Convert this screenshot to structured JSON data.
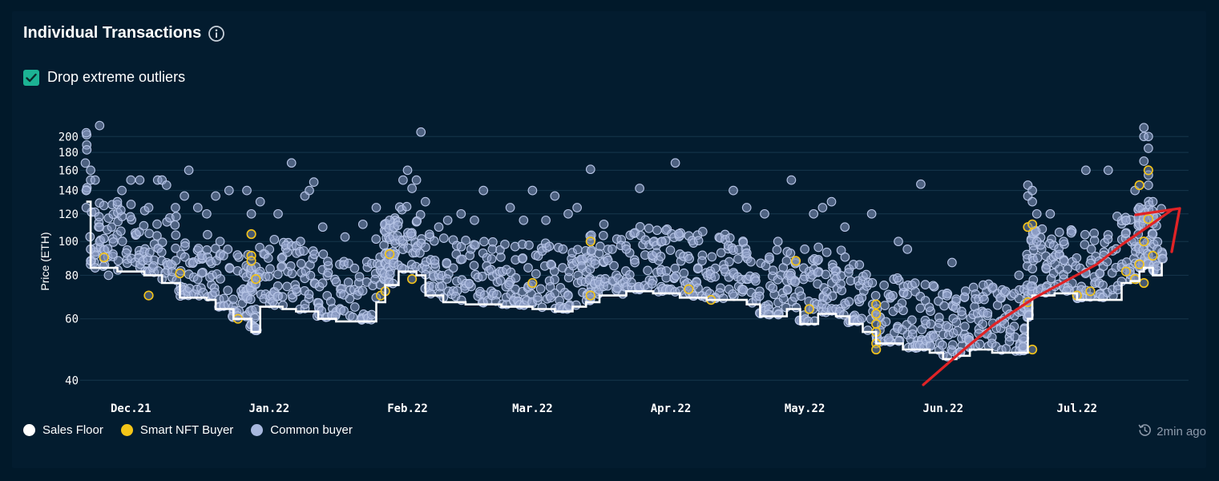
{
  "widget": {
    "title": "Individual Transactions",
    "info_icon": "info-circle-icon",
    "toggle_label": "Drop extreme outliers",
    "toggle_checked": true,
    "updated": "2min ago",
    "updated_icon": "clock-history-icon"
  },
  "legend": {
    "items": [
      {
        "label": "Sales Floor",
        "color": "#ffffff"
      },
      {
        "label": "Smart NFT Buyer",
        "color": "#f5c518"
      },
      {
        "label": "Common buyer",
        "color": "#a8b8de"
      }
    ]
  },
  "colors": {
    "background": "#01192a",
    "panel": "#031c2f",
    "grid": "#16364c",
    "floor": "#ffffff",
    "smart": "#f5c518",
    "common": "#a8b8de",
    "annotation": "#e02326",
    "toggle": "#1cb394"
  },
  "chart_data": {
    "type": "scatter",
    "ylabel": "Price (ETH)",
    "xlabel": "",
    "y_scale": "log",
    "ylim": [
      38,
      225
    ],
    "xlim": [
      "2021-11-20",
      "2022-07-26"
    ],
    "yticks": [
      40,
      60,
      80,
      100,
      120,
      140,
      160,
      180,
      200
    ],
    "xticks": [
      {
        "date": "2021-12-01",
        "label": "Dec.21"
      },
      {
        "date": "2022-01-01",
        "label": "Jan.22"
      },
      {
        "date": "2022-02-01",
        "label": "Feb.22"
      },
      {
        "date": "2022-03-01",
        "label": "Mar.22"
      },
      {
        "date": "2022-04-01",
        "label": "Apr.22"
      },
      {
        "date": "2022-05-01",
        "label": "May.22"
      },
      {
        "date": "2022-06-01",
        "label": "Jun.22"
      },
      {
        "date": "2022-07-01",
        "label": "Jul.22"
      }
    ],
    "grid": true,
    "legend_position": "bottom-left",
    "series": [
      {
        "name": "Sales Floor",
        "kind": "step-line",
        "points": [
          [
            "2021-11-21",
            130
          ],
          [
            "2021-11-22",
            84
          ],
          [
            "2021-11-28",
            82
          ],
          [
            "2021-12-04",
            80
          ],
          [
            "2021-12-08",
            76
          ],
          [
            "2021-12-12",
            69
          ],
          [
            "2021-12-18",
            68
          ],
          [
            "2021-12-20",
            64
          ],
          [
            "2021-12-24",
            60
          ],
          [
            "2021-12-28",
            55
          ],
          [
            "2021-12-30",
            65
          ],
          [
            "2022-01-04",
            64
          ],
          [
            "2022-01-07",
            63
          ],
          [
            "2022-01-12",
            60
          ],
          [
            "2022-01-16",
            59
          ],
          [
            "2022-01-22",
            59
          ],
          [
            "2022-01-25",
            67
          ],
          [
            "2022-01-27",
            75
          ],
          [
            "2022-01-30",
            82
          ],
          [
            "2022-02-03",
            80
          ],
          [
            "2022-02-05",
            70
          ],
          [
            "2022-02-09",
            67
          ],
          [
            "2022-02-14",
            66
          ],
          [
            "2022-02-22",
            65
          ],
          [
            "2022-03-01",
            64
          ],
          [
            "2022-03-06",
            63
          ],
          [
            "2022-03-10",
            65
          ],
          [
            "2022-03-13",
            67
          ],
          [
            "2022-03-16",
            70
          ],
          [
            "2022-03-22",
            72
          ],
          [
            "2022-03-28",
            71
          ],
          [
            "2022-04-03",
            69
          ],
          [
            "2022-04-09",
            68
          ],
          [
            "2022-04-14",
            68
          ],
          [
            "2022-04-18",
            66
          ],
          [
            "2022-04-21",
            61
          ],
          [
            "2022-04-27",
            64
          ],
          [
            "2022-04-30",
            58
          ],
          [
            "2022-05-04",
            62
          ],
          [
            "2022-05-08",
            61
          ],
          [
            "2022-05-11",
            58
          ],
          [
            "2022-05-14",
            55
          ],
          [
            "2022-05-17",
            51
          ],
          [
            "2022-05-23",
            49
          ],
          [
            "2022-05-29",
            48
          ],
          [
            "2022-06-01",
            46
          ],
          [
            "2022-06-04",
            47
          ],
          [
            "2022-06-07",
            49
          ],
          [
            "2022-06-12",
            48
          ],
          [
            "2022-06-17",
            48
          ],
          [
            "2022-06-20",
            60
          ],
          [
            "2022-06-21",
            70
          ],
          [
            "2022-06-26",
            71
          ],
          [
            "2022-07-01",
            68
          ],
          [
            "2022-07-08",
            68
          ],
          [
            "2022-07-11",
            76
          ],
          [
            "2022-07-13",
            77
          ],
          [
            "2022-07-15",
            82
          ],
          [
            "2022-07-16",
            84
          ],
          [
            "2022-07-18",
            80
          ],
          [
            "2022-07-20",
            87
          ]
        ]
      },
      {
        "name": "Smart NFT Buyer",
        "kind": "scatter",
        "points": [
          [
            "2021-11-25",
            90
          ],
          [
            "2021-12-05",
            70
          ],
          [
            "2021-12-12",
            81
          ],
          [
            "2021-12-25",
            60
          ],
          [
            "2021-12-28",
            105
          ],
          [
            "2021-12-28",
            91
          ],
          [
            "2021-12-28",
            88
          ],
          [
            "2021-12-29",
            78
          ],
          [
            "2022-01-26",
            70
          ],
          [
            "2022-01-27",
            72
          ],
          [
            "2022-01-28",
            92
          ],
          [
            "2022-02-02",
            78
          ],
          [
            "2022-03-01",
            76
          ],
          [
            "2022-03-14",
            100
          ],
          [
            "2022-03-14",
            70
          ],
          [
            "2022-04-05",
            73
          ],
          [
            "2022-04-10",
            68
          ],
          [
            "2022-04-29",
            88
          ],
          [
            "2022-05-02",
            64
          ],
          [
            "2022-05-17",
            66
          ],
          [
            "2022-05-17",
            62
          ],
          [
            "2022-05-17",
            58
          ],
          [
            "2022-05-17",
            55
          ],
          [
            "2022-05-17",
            51
          ],
          [
            "2022-05-17",
            49
          ],
          [
            "2022-06-20",
            110
          ],
          [
            "2022-06-20",
            67
          ],
          [
            "2022-06-21",
            112
          ],
          [
            "2022-06-21",
            49
          ],
          [
            "2022-07-01",
            70
          ],
          [
            "2022-07-04",
            72
          ],
          [
            "2022-07-12",
            82
          ],
          [
            "2022-07-14",
            78
          ],
          [
            "2022-07-15",
            145
          ],
          [
            "2022-07-15",
            86
          ],
          [
            "2022-07-16",
            100
          ],
          [
            "2022-07-16",
            76
          ],
          [
            "2022-07-17",
            160
          ],
          [
            "2022-07-17",
            116
          ],
          [
            "2022-07-18",
            91
          ]
        ]
      },
      {
        "name": "Common buyer",
        "kind": "scatter",
        "points": [
          [
            "2021-11-21",
            205
          ],
          [
            "2021-11-21",
            140
          ],
          [
            "2021-11-21",
            125
          ],
          [
            "2021-11-22",
            160
          ],
          [
            "2021-11-22",
            150
          ],
          [
            "2021-11-23",
            150
          ],
          [
            "2021-11-24",
            215
          ],
          [
            "2021-11-24",
            110
          ],
          [
            "2021-11-22",
            95
          ],
          [
            "2021-11-22",
            88
          ],
          [
            "2021-11-23",
            84
          ],
          [
            "2021-11-24",
            100
          ],
          [
            "2021-11-25",
            102
          ],
          [
            "2021-11-26",
            80
          ],
          [
            "2021-11-27",
            92
          ],
          [
            "2021-11-28",
            130
          ],
          [
            "2021-11-29",
            140
          ],
          [
            "2021-12-01",
            150
          ],
          [
            "2021-12-03",
            150
          ],
          [
            "2021-12-05",
            125
          ],
          [
            "2021-12-07",
            150
          ],
          [
            "2021-12-08",
            150
          ],
          [
            "2021-12-09",
            145
          ],
          [
            "2021-12-11",
            125
          ],
          [
            "2021-12-13",
            135
          ],
          [
            "2021-12-14",
            160
          ],
          [
            "2021-12-16",
            125
          ],
          [
            "2021-12-18",
            120
          ],
          [
            "2021-12-20",
            135
          ],
          [
            "2021-12-21",
            100
          ],
          [
            "2021-12-23",
            140
          ],
          [
            "2021-12-27",
            140
          ],
          [
            "2021-12-28",
            120
          ],
          [
            "2021-12-30",
            130
          ],
          [
            "2022-01-03",
            120
          ],
          [
            "2022-01-06",
            168
          ],
          [
            "2022-01-08",
            100
          ],
          [
            "2022-01-09",
            135
          ],
          [
            "2022-01-11",
            148
          ],
          [
            "2022-01-13",
            110
          ],
          [
            "2022-01-10",
            140
          ],
          [
            "2022-01-18",
            103
          ],
          [
            "2022-01-22",
            112
          ],
          [
            "2022-01-25",
            125
          ],
          [
            "2022-01-28",
            115
          ],
          [
            "2022-01-31",
            150
          ],
          [
            "2022-02-01",
            160
          ],
          [
            "2022-02-02",
            142
          ],
          [
            "2022-02-03",
            150
          ],
          [
            "2022-02-04",
            206
          ],
          [
            "2022-02-05",
            130
          ],
          [
            "2022-02-08",
            110
          ],
          [
            "2022-02-10",
            115
          ],
          [
            "2022-02-13",
            120
          ],
          [
            "2022-02-16",
            115
          ],
          [
            "2022-02-18",
            140
          ],
          [
            "2022-02-20",
            95
          ],
          [
            "2022-02-24",
            125
          ],
          [
            "2022-02-27",
            115
          ],
          [
            "2022-03-01",
            140
          ],
          [
            "2022-03-04",
            115
          ],
          [
            "2022-03-06",
            135
          ],
          [
            "2022-03-09",
            120
          ],
          [
            "2022-03-11",
            125
          ],
          [
            "2022-03-12",
            85
          ],
          [
            "2022-03-14",
            161
          ],
          [
            "2022-03-17",
            112
          ],
          [
            "2022-03-22",
            95
          ],
          [
            "2022-03-25",
            142
          ],
          [
            "2022-03-30",
            100
          ],
          [
            "2022-04-02",
            168
          ],
          [
            "2022-04-08",
            88
          ],
          [
            "2022-04-15",
            140
          ],
          [
            "2022-04-18",
            125
          ],
          [
            "2022-04-22",
            120
          ],
          [
            "2022-04-25",
            100
          ],
          [
            "2022-04-28",
            150
          ],
          [
            "2022-05-01",
            95
          ],
          [
            "2022-05-03",
            120
          ],
          [
            "2022-05-05",
            125
          ],
          [
            "2022-05-07",
            130
          ],
          [
            "2022-05-10",
            110
          ],
          [
            "2022-05-16",
            120
          ],
          [
            "2022-05-22",
            100
          ],
          [
            "2022-05-24",
            95
          ],
          [
            "2022-05-27",
            146
          ],
          [
            "2022-06-03",
            87
          ],
          [
            "2022-06-10",
            75
          ],
          [
            "2022-06-15",
            72
          ],
          [
            "2022-06-18",
            80
          ],
          [
            "2022-06-20",
            145
          ],
          [
            "2022-06-20",
            135
          ],
          [
            "2022-06-21",
            140
          ],
          [
            "2022-06-21",
            130
          ],
          [
            "2022-06-22",
            120
          ],
          [
            "2022-06-22",
            100
          ],
          [
            "2022-06-25",
            120
          ],
          [
            "2022-06-28",
            100
          ],
          [
            "2022-07-03",
            160
          ],
          [
            "2022-07-08",
            160
          ],
          [
            "2022-07-10",
            118
          ],
          [
            "2022-07-12",
            115
          ],
          [
            "2022-07-14",
            140
          ],
          [
            "2022-07-15",
            125
          ],
          [
            "2022-07-16",
            212
          ],
          [
            "2022-07-16",
            200
          ],
          [
            "2022-07-16",
            170
          ],
          [
            "2022-07-17",
            200
          ],
          [
            "2022-07-17",
            185
          ],
          [
            "2022-07-17",
            155
          ],
          [
            "2022-07-17",
            145
          ],
          [
            "2022-07-18",
            130
          ],
          [
            "2022-07-18",
            105
          ],
          [
            "2022-07-19",
            95
          ],
          [
            "2022-07-19",
            85
          ]
        ]
      }
    ]
  }
}
